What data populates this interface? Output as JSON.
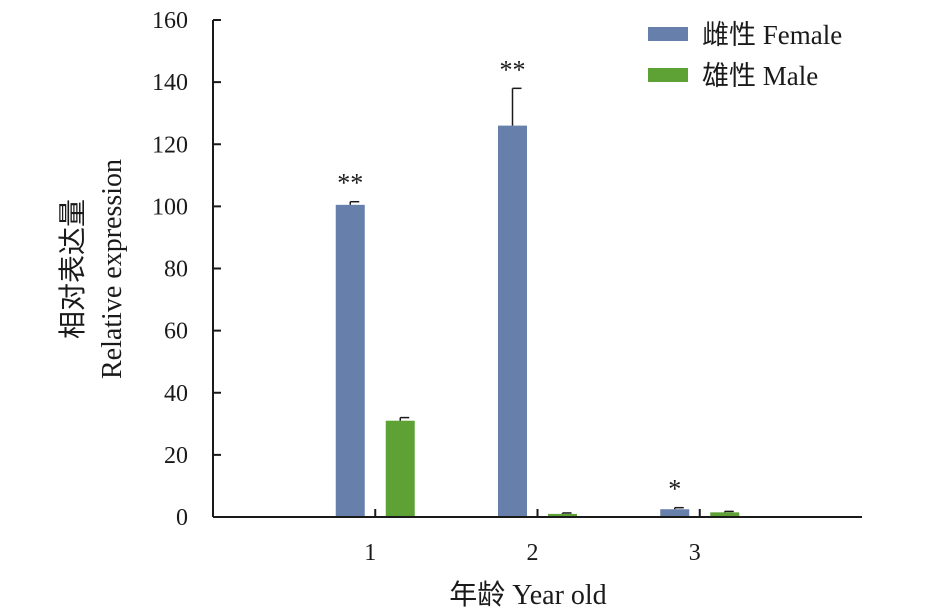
{
  "chart_data": {
    "type": "bar",
    "categories": [
      "1",
      "2",
      "3"
    ],
    "series": [
      {
        "name": "雌性 Female",
        "color": "#6680ab",
        "values": [
          100.5,
          126,
          2.5
        ],
        "errors": [
          1,
          12,
          0.5
        ],
        "sig": [
          "**",
          "**",
          "*"
        ]
      },
      {
        "name": "雄性 Male",
        "color": "#5ea236",
        "values": [
          31,
          1,
          1.5
        ],
        "errors": [
          1,
          0.3,
          0.3
        ],
        "sig": [
          "",
          "",
          ""
        ]
      }
    ],
    "xlabel": "年龄 Year old",
    "ylabel_line1": "相对表达量",
    "ylabel_line2": "Relative expression",
    "ylim": [
      0,
      160
    ],
    "yticks": [
      0,
      20,
      40,
      60,
      80,
      100,
      120,
      140,
      160
    ],
    "legend_position": "top-right",
    "grid": false
  }
}
